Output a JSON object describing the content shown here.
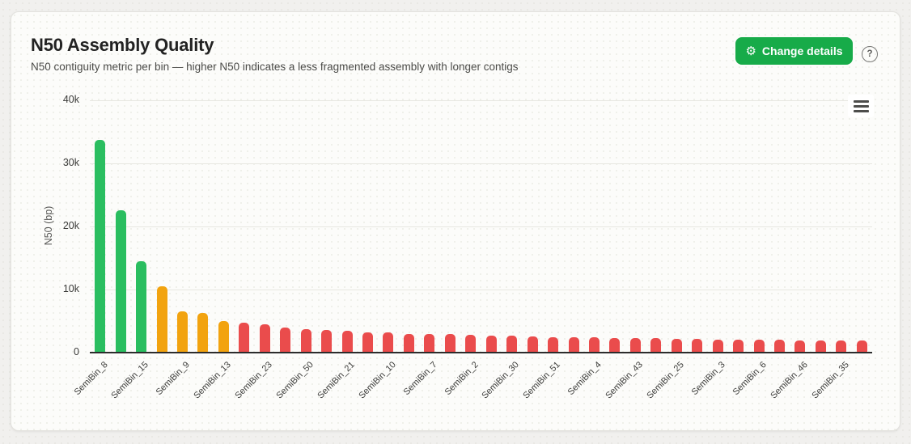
{
  "header": {
    "title": "N50 Assembly Quality",
    "subtitle": "N50 contiguity metric per bin — higher N50 indicates a less fragmented assembly with longer contigs",
    "change_details_label": "Change details"
  },
  "icons": {
    "gear_glyph": "⚙",
    "help_glyph": "?",
    "menu_icon_name": "hamburger-menu"
  },
  "colors": {
    "button_green": "#17ab49",
    "bar_green": "#2abe60",
    "bar_orange": "#f2a30f",
    "bar_red": "#ea4c4c"
  },
  "chart_data": {
    "type": "bar",
    "title": "N50 Assembly Quality",
    "xlabel": "",
    "ylabel": "N50 (bp)",
    "ylim": [
      0,
      40000
    ],
    "grid": true,
    "legend": false,
    "note": "x labels shown for every second bar; bars sorted descending",
    "yticks": [
      {
        "label": "0",
        "value": 0
      },
      {
        "label": "10k",
        "value": 10000
      },
      {
        "label": "20k",
        "value": 20000
      },
      {
        "label": "30k",
        "value": 30000
      },
      {
        "label": "40k",
        "value": 40000
      }
    ],
    "bars": [
      {
        "label": "SemiBin_8",
        "value": 33700,
        "color": "green"
      },
      {
        "label": "",
        "value": 22600,
        "color": "green"
      },
      {
        "label": "SemiBin_15",
        "value": 14500,
        "color": "green"
      },
      {
        "label": "",
        "value": 10550,
        "color": "orange"
      },
      {
        "label": "SemiBin_9",
        "value": 6600,
        "color": "orange"
      },
      {
        "label": "",
        "value": 6300,
        "color": "orange"
      },
      {
        "label": "SemiBin_13",
        "value": 5000,
        "color": "orange"
      },
      {
        "label": "",
        "value": 4800,
        "color": "red"
      },
      {
        "label": "SemiBin_23",
        "value": 4450,
        "color": "red"
      },
      {
        "label": "",
        "value": 3950,
        "color": "red"
      },
      {
        "label": "SemiBin_50",
        "value": 3700,
        "color": "red"
      },
      {
        "label": "",
        "value": 3550,
        "color": "red"
      },
      {
        "label": "SemiBin_21",
        "value": 3400,
        "color": "red"
      },
      {
        "label": "",
        "value": 3250,
        "color": "red"
      },
      {
        "label": "SemiBin_10",
        "value": 3150,
        "color": "red"
      },
      {
        "label": "",
        "value": 3000,
        "color": "red"
      },
      {
        "label": "SemiBin_7",
        "value": 2950,
        "color": "red"
      },
      {
        "label": "",
        "value": 2900,
        "color": "red"
      },
      {
        "label": "SemiBin_2",
        "value": 2850,
        "color": "red"
      },
      {
        "label": "",
        "value": 2750,
        "color": "red"
      },
      {
        "label": "SemiBin_30",
        "value": 2650,
        "color": "red"
      },
      {
        "label": "",
        "value": 2600,
        "color": "red"
      },
      {
        "label": "SemiBin_51",
        "value": 2500,
        "color": "red"
      },
      {
        "label": "",
        "value": 2450,
        "color": "red"
      },
      {
        "label": "SemiBin_4",
        "value": 2400,
        "color": "red"
      },
      {
        "label": "",
        "value": 2350,
        "color": "red"
      },
      {
        "label": "SemiBin_43",
        "value": 2300,
        "color": "red"
      },
      {
        "label": "",
        "value": 2250,
        "color": "red"
      },
      {
        "label": "SemiBin_25",
        "value": 2200,
        "color": "red"
      },
      {
        "label": "",
        "value": 2150,
        "color": "red"
      },
      {
        "label": "SemiBin_3",
        "value": 2100,
        "color": "red"
      },
      {
        "label": "",
        "value": 2050,
        "color": "red"
      },
      {
        "label": "SemiBin_6",
        "value": 2050,
        "color": "red"
      },
      {
        "label": "",
        "value": 2000,
        "color": "red"
      },
      {
        "label": "SemiBin_46",
        "value": 1950,
        "color": "red"
      },
      {
        "label": "",
        "value": 1950,
        "color": "red"
      },
      {
        "label": "SemiBin_35",
        "value": 1900,
        "color": "red"
      },
      {
        "label": "",
        "value": 1900,
        "color": "red"
      }
    ]
  }
}
